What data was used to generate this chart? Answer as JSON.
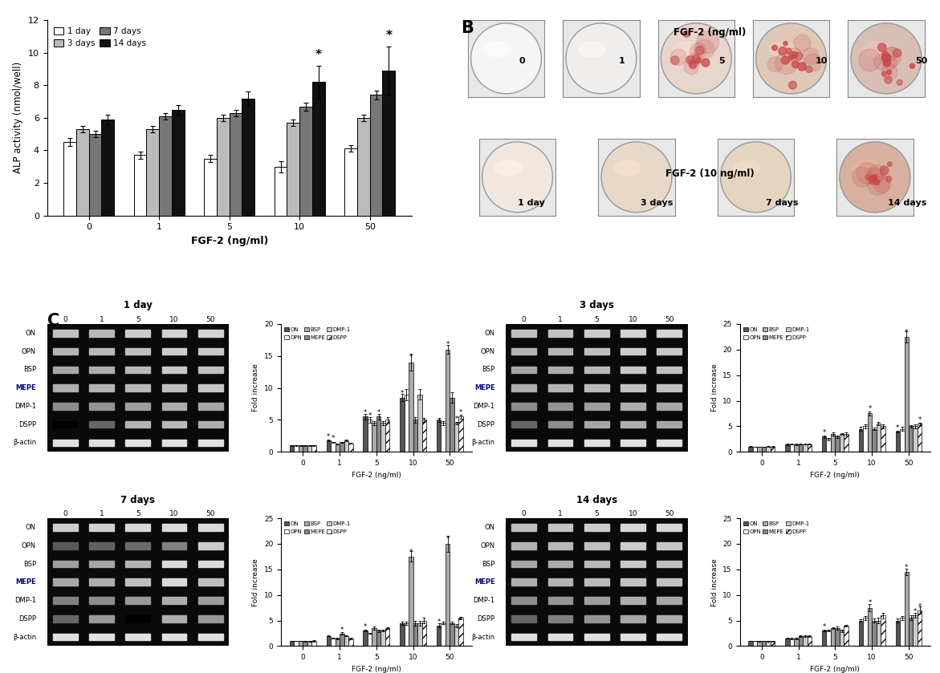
{
  "panel_A": {
    "groups": [
      "0",
      "1",
      "5",
      "10",
      "50"
    ],
    "series": {
      "1day": [
        4.5,
        3.7,
        3.5,
        3.0,
        4.1
      ],
      "3days": [
        5.3,
        5.3,
        6.0,
        5.7,
        6.0
      ],
      "7days": [
        5.0,
        6.1,
        6.3,
        6.7,
        7.4
      ],
      "14days": [
        5.9,
        6.5,
        7.2,
        8.2,
        8.9
      ]
    },
    "errors": {
      "1day": [
        0.25,
        0.2,
        0.2,
        0.35,
        0.2
      ],
      "3days": [
        0.2,
        0.2,
        0.2,
        0.2,
        0.2
      ],
      "7days": [
        0.2,
        0.2,
        0.2,
        0.25,
        0.25
      ],
      "14days": [
        0.3,
        0.3,
        0.4,
        1.0,
        1.5
      ]
    },
    "colors": {
      "1day": "#ffffff",
      "3days": "#bbbbbb",
      "7days": "#777777",
      "14days": "#111111"
    },
    "ylabel": "ALP activity (nmol/well)",
    "xlabel": "FGF-2 (ng/ml)",
    "ylim": [
      0,
      12
    ],
    "yticks": [
      0,
      2,
      4,
      6,
      8,
      10,
      12
    ],
    "legend_labels": [
      "1 day",
      "3 days",
      "7 days",
      "14 days"
    ]
  },
  "panel_B": {
    "row1_label": "FGF-2 (ng/ml)",
    "row1_doses": [
      "0",
      "1",
      "5",
      "10",
      "50"
    ],
    "row2_label": "FGF-2 (10 ng/ml)",
    "row2_times": [
      "1 day",
      "3 days",
      "7 days",
      "14 days"
    ],
    "row1_base_colors": [
      "#f5f5f5",
      "#f0eded",
      "#e8d5cc",
      "#dfc8b8",
      "#d8bfb5"
    ],
    "row1_spot_count": [
      0,
      0,
      8,
      12,
      10
    ],
    "row2_base_colors": [
      "#f0e8e0",
      "#e8d8c8",
      "#e5d5c0",
      "#d8b0a0"
    ],
    "row2_spot_count": [
      0,
      0,
      0,
      8
    ]
  },
  "panel_C": {
    "timepoints": [
      "1 day",
      "3 days",
      "7 days",
      "14 days"
    ],
    "gel_genes": [
      "ON",
      "OPN",
      "BSP",
      "MEPE",
      "DMP-1",
      "DSPP",
      "β-actin"
    ],
    "gel_doses": [
      "0",
      "1",
      "5",
      "10",
      "50"
    ],
    "series_labels": [
      "ON",
      "OPN",
      "BSP",
      "MEPE",
      "DMP-1",
      "DSPP"
    ],
    "bar_colors": [
      "#555555",
      "#ffffff",
      "#aaaaaa",
      "#888888",
      "#cccccc",
      "#ffffff"
    ],
    "bar_hatches": [
      "",
      "",
      "",
      "",
      "",
      "///"
    ],
    "ylims": {
      "1 day": 20,
      "3 days": 25,
      "7 days": 25,
      "14 days": 25
    },
    "data": {
      "1 day": {
        "ON": [
          1.0,
          1.8,
          5.5,
          8.5,
          5.0
        ],
        "OPN": [
          1.0,
          1.5,
          5.0,
          9.0,
          4.5
        ],
        "BSP": [
          1.0,
          1.2,
          4.5,
          14.0,
          16.0
        ],
        "MEPE": [
          1.0,
          1.5,
          5.5,
          5.0,
          8.5
        ],
        "DMP-1": [
          1.0,
          1.8,
          4.5,
          9.0,
          4.5
        ],
        "DSPP": [
          1.0,
          1.3,
          5.0,
          5.0,
          5.5
        ]
      },
      "3 days": {
        "ON": [
          1.0,
          1.5,
          3.0,
          4.5,
          4.0
        ],
        "OPN": [
          1.0,
          1.5,
          2.5,
          5.0,
          4.5
        ],
        "BSP": [
          1.0,
          1.5,
          3.5,
          7.5,
          22.5
        ],
        "MEPE": [
          1.0,
          1.5,
          3.0,
          4.5,
          5.0
        ],
        "DMP-1": [
          1.0,
          1.5,
          3.5,
          5.5,
          5.0
        ],
        "DSPP": [
          1.0,
          1.5,
          3.5,
          5.0,
          5.5
        ]
      },
      "7 days": {
        "ON": [
          1.0,
          2.0,
          3.0,
          4.5,
          4.0
        ],
        "OPN": [
          1.0,
          1.5,
          2.5,
          4.5,
          4.5
        ],
        "BSP": [
          1.0,
          1.5,
          3.5,
          17.5,
          20.0
        ],
        "MEPE": [
          1.0,
          2.5,
          3.0,
          4.5,
          4.5
        ],
        "DMP-1": [
          1.0,
          2.0,
          3.0,
          4.5,
          4.0
        ],
        "DSPP": [
          1.0,
          1.5,
          3.5,
          5.0,
          5.5
        ]
      },
      "14 days": {
        "ON": [
          1.0,
          1.5,
          3.0,
          5.0,
          5.0
        ],
        "OPN": [
          1.0,
          1.5,
          3.0,
          5.5,
          5.5
        ],
        "BSP": [
          1.0,
          1.5,
          3.5,
          7.5,
          14.5
        ],
        "MEPE": [
          1.0,
          2.0,
          3.5,
          5.0,
          5.5
        ],
        "DMP-1": [
          1.0,
          2.0,
          3.0,
          5.0,
          6.0
        ],
        "DSPP": [
          1.0,
          2.0,
          4.0,
          6.0,
          7.0
        ]
      }
    },
    "gel_intensities": {
      "1 day": {
        "ON": [
          0.75,
          0.72,
          0.8,
          0.82,
          0.82
        ],
        "OPN": [
          0.7,
          0.72,
          0.75,
          0.8,
          0.78
        ],
        "BSP": [
          0.65,
          0.68,
          0.72,
          0.78,
          0.75
        ],
        "MEPE": [
          0.68,
          0.7,
          0.72,
          0.75,
          0.78
        ],
        "DMP-1": [
          0.55,
          0.58,
          0.62,
          0.68,
          0.65
        ],
        "DSPP": [
          0.0,
          0.4,
          0.7,
          0.72,
          0.68
        ],
        "β-actin": [
          0.88,
          0.88,
          0.88,
          0.88,
          0.88
        ]
      },
      "3 days": {
        "ON": [
          0.75,
          0.76,
          0.8,
          0.83,
          0.83
        ],
        "OPN": [
          0.7,
          0.71,
          0.75,
          0.8,
          0.78
        ],
        "BSP": [
          0.65,
          0.67,
          0.72,
          0.78,
          0.75
        ],
        "MEPE": [
          0.68,
          0.7,
          0.73,
          0.76,
          0.76
        ],
        "DMP-1": [
          0.55,
          0.58,
          0.62,
          0.68,
          0.65
        ],
        "DSPP": [
          0.4,
          0.55,
          0.65,
          0.68,
          0.65
        ],
        "β-actin": [
          0.88,
          0.88,
          0.88,
          0.88,
          0.88
        ]
      },
      "7 days": {
        "ON": [
          0.8,
          0.82,
          0.84,
          0.86,
          0.85
        ],
        "OPN": [
          0.35,
          0.38,
          0.42,
          0.5,
          0.8
        ],
        "BSP": [
          0.62,
          0.65,
          0.7,
          0.85,
          0.85
        ],
        "MEPE": [
          0.65,
          0.68,
          0.75,
          0.85,
          0.75
        ],
        "DMP-1": [
          0.5,
          0.55,
          0.6,
          0.68,
          0.62
        ],
        "DSPP": [
          0.4,
          0.6,
          0.0,
          0.68,
          0.6
        ],
        "β-actin": [
          0.88,
          0.88,
          0.88,
          0.88,
          0.88
        ]
      },
      "14 days": {
        "ON": [
          0.75,
          0.77,
          0.8,
          0.84,
          0.84
        ],
        "OPN": [
          0.7,
          0.72,
          0.75,
          0.8,
          0.78
        ],
        "BSP": [
          0.65,
          0.67,
          0.72,
          0.78,
          0.75
        ],
        "MEPE": [
          0.68,
          0.7,
          0.73,
          0.76,
          0.76
        ],
        "DMP-1": [
          0.55,
          0.58,
          0.62,
          0.68,
          0.65
        ],
        "DSPP": [
          0.4,
          0.5,
          0.58,
          0.65,
          0.68
        ],
        "β-actin": [
          0.88,
          0.88,
          0.88,
          0.88,
          0.88
        ]
      }
    }
  }
}
